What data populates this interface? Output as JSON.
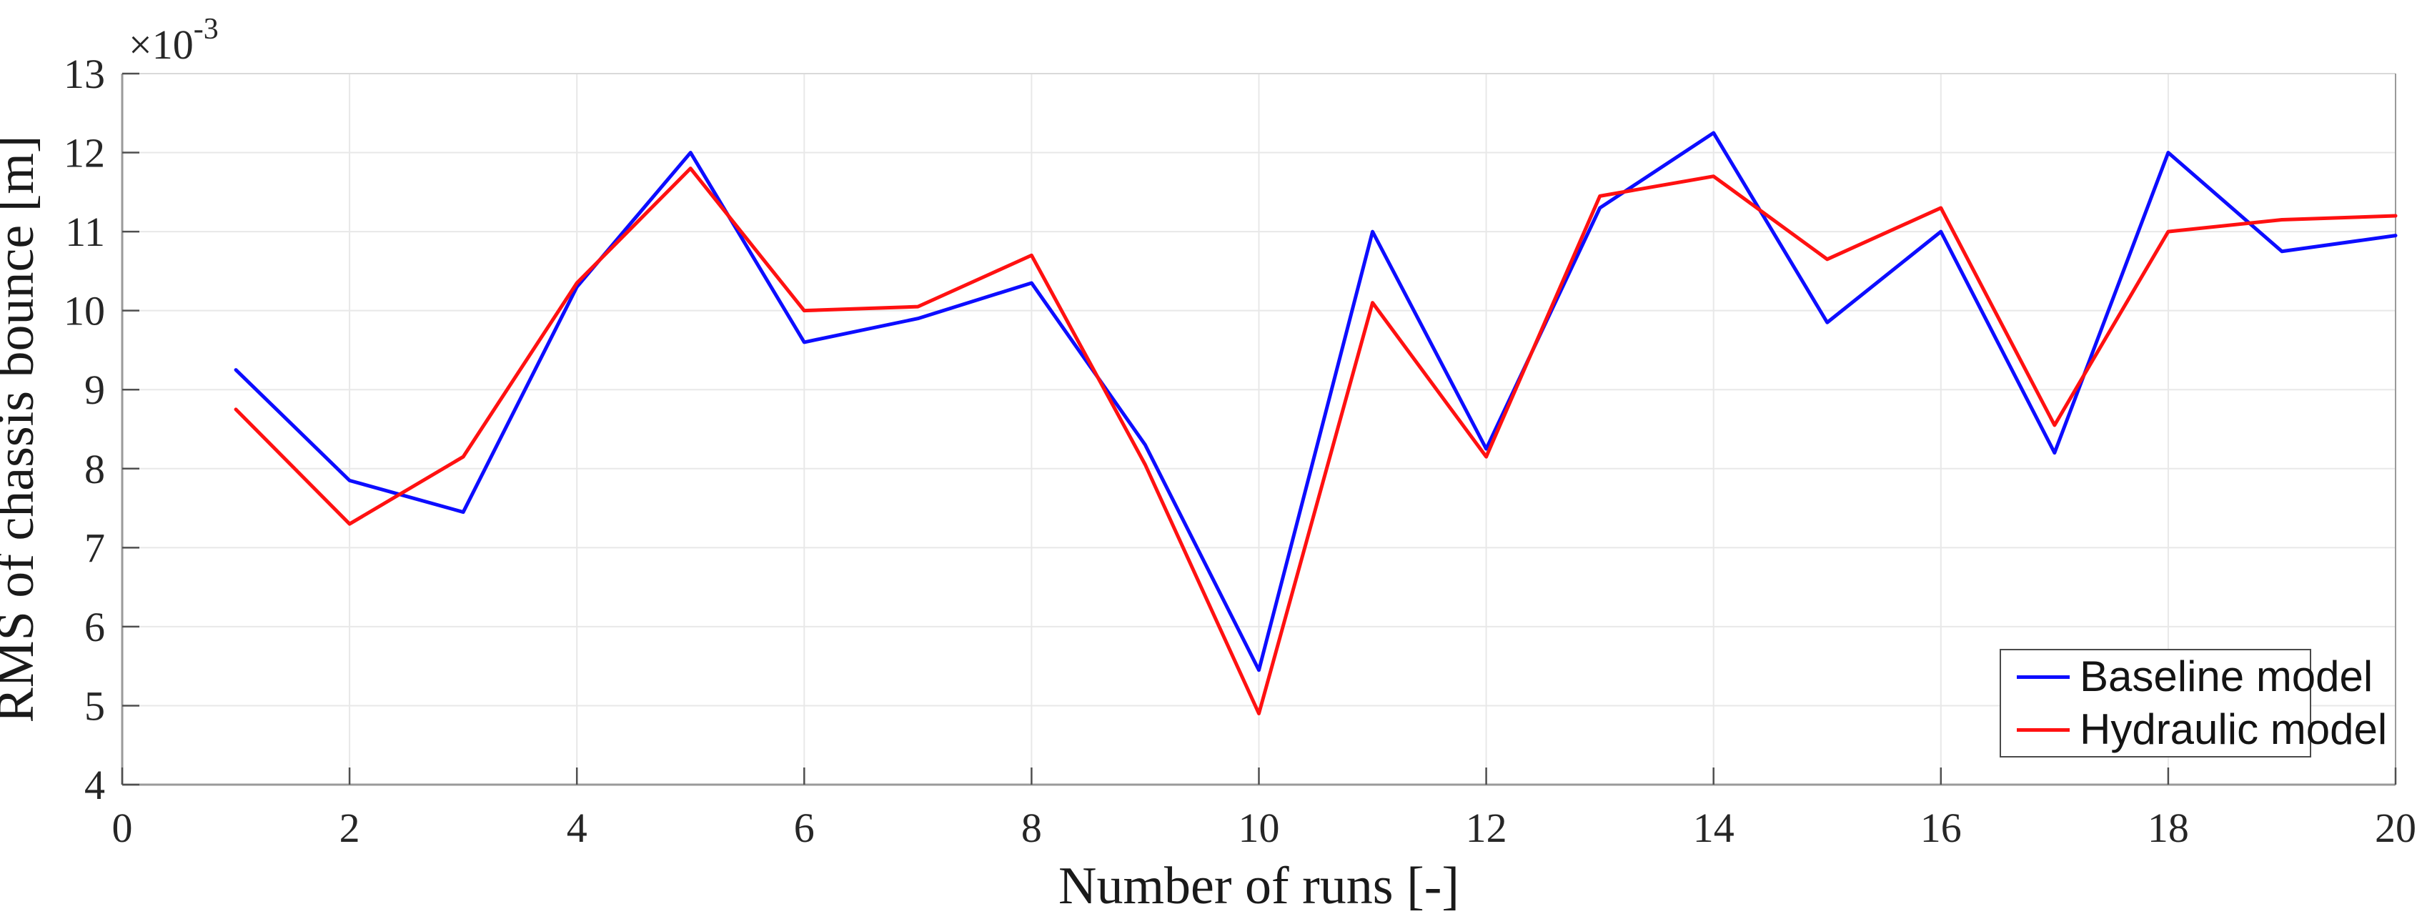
{
  "chart_data": {
    "type": "line",
    "title": "",
    "xlabel": "Number of runs [-]",
    "ylabel": "RMS of chassis bounce [m]",
    "y_offset": {
      "base": "×10",
      "exp": "-3"
    },
    "values_scale": "1e-3",
    "xlim": [
      0,
      20
    ],
    "ylim": [
      4,
      13
    ],
    "xticks": [
      0,
      2,
      4,
      6,
      8,
      10,
      12,
      14,
      16,
      18,
      20
    ],
    "yticks": [
      4,
      5,
      6,
      7,
      8,
      9,
      10,
      11,
      12,
      13
    ],
    "grid": true,
    "legend_position": "lower right",
    "x": [
      1,
      2,
      3,
      4,
      5,
      6,
      7,
      8,
      9,
      10,
      11,
      12,
      13,
      14,
      15,
      16,
      17,
      18,
      19,
      20
    ],
    "series": [
      {
        "name": "Baseline model",
        "color": "#0d0dff",
        "values": [
          9.25,
          7.85,
          7.45,
          10.3,
          12.0,
          9.6,
          9.9,
          10.35,
          8.3,
          5.45,
          11.0,
          8.25,
          11.3,
          12.25,
          9.85,
          11.0,
          8.2,
          12.0,
          10.75,
          10.95
        ]
      },
      {
        "name": "Hydraulic model",
        "color": "#ff1111",
        "values": [
          8.75,
          7.3,
          8.15,
          10.35,
          11.8,
          10.0,
          10.05,
          10.7,
          8.05,
          4.9,
          10.1,
          8.15,
          11.45,
          11.7,
          10.65,
          11.3,
          8.55,
          11.0,
          11.15,
          11.2
        ]
      }
    ],
    "colors": {
      "grid": "#e8e8e8",
      "box_light": "#d9d9d9",
      "box_gray": "#9a9a9a",
      "tick": "#4f4f4f",
      "text": "#262626"
    }
  },
  "legend": {
    "rows": [
      {
        "label": "Baseline model"
      },
      {
        "label": "Hydraulic model"
      }
    ]
  }
}
